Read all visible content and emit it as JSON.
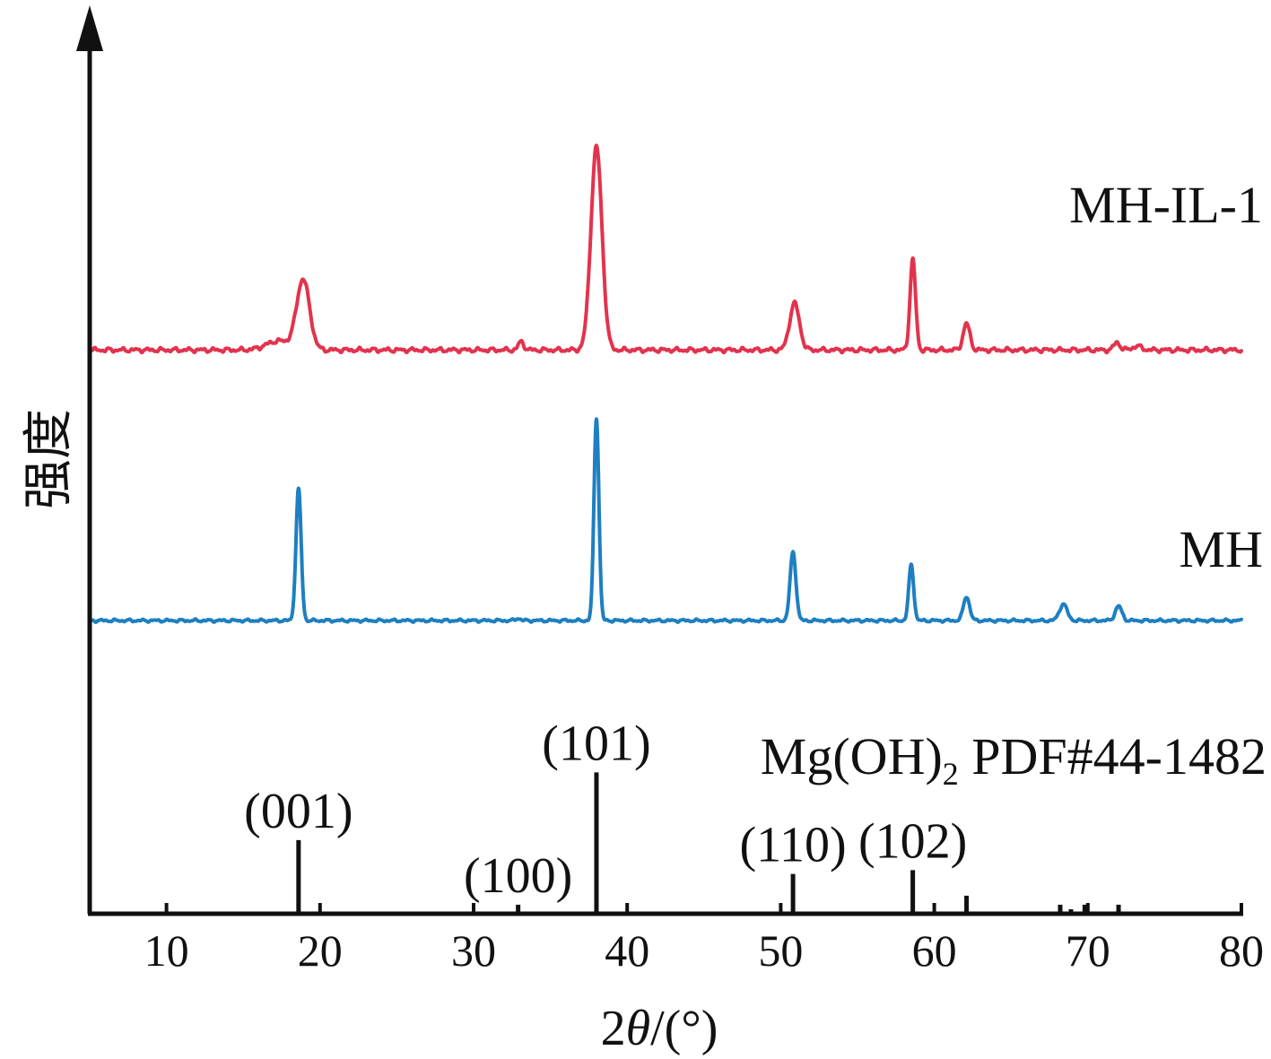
{
  "chart_data": {
    "type": "line",
    "title": "",
    "xlabel": "2θ/(°)",
    "xlabel_parts": {
      "prefix": "2",
      "theta": "θ",
      "suffix": "/(°)"
    },
    "ylabel": "强度",
    "xlim": [
      5,
      80
    ],
    "ylim": [
      0,
      115
    ],
    "ticks": [
      "10",
      "20",
      "30",
      "40",
      "50",
      "60",
      "70",
      "80"
    ],
    "tick_values": [
      10,
      20,
      30,
      40,
      50,
      60,
      70,
      80
    ],
    "legend": "inline-right",
    "series": [
      {
        "name": "MH-IL-1",
        "color": "#e2334d",
        "baseline": 75,
        "noise": 0.35,
        "peaks": [
          {
            "x": 17.3,
            "h": 1.2,
            "w": 0.8
          },
          {
            "x": 18.9,
            "h": 9.3,
            "w": 0.42
          },
          {
            "x": 33.1,
            "h": 1.1,
            "w": 0.18
          },
          {
            "x": 38.0,
            "h": 27.0,
            "w": 0.36
          },
          {
            "x": 50.9,
            "h": 6.2,
            "w": 0.32
          },
          {
            "x": 58.6,
            "h": 12.0,
            "w": 0.18
          },
          {
            "x": 62.1,
            "h": 3.5,
            "w": 0.22
          },
          {
            "x": 71.9,
            "h": 1.0,
            "w": 0.2
          },
          {
            "x": 73.2,
            "h": 0.5,
            "w": 0.3
          }
        ]
      },
      {
        "name": "MH",
        "color": "#1e7fc1",
        "baseline": 39,
        "noise": 0.22,
        "peaks": [
          {
            "x": 18.6,
            "h": 17.5,
            "w": 0.17
          },
          {
            "x": 32.9,
            "h": 0.3,
            "w": 0.15
          },
          {
            "x": 38.0,
            "h": 27.0,
            "w": 0.16
          },
          {
            "x": 50.8,
            "h": 9.1,
            "w": 0.19
          },
          {
            "x": 58.5,
            "h": 7.4,
            "w": 0.16
          },
          {
            "x": 62.1,
            "h": 3.2,
            "w": 0.2
          },
          {
            "x": 68.4,
            "h": 2.2,
            "w": 0.25
          },
          {
            "x": 72.0,
            "h": 1.9,
            "w": 0.22
          }
        ]
      }
    ],
    "reference": {
      "name": "Mg(OH)",
      "name_sub": "2",
      "name_suffix": " PDF#44-1482",
      "color": "#111111",
      "bars": [
        {
          "x": 18.6,
          "h": 9.8,
          "label": "(001)"
        },
        {
          "x": 32.9,
          "h": 1.2,
          "label": "(100)"
        },
        {
          "x": 38.0,
          "h": 18.8,
          "label": "(101)"
        },
        {
          "x": 50.8,
          "h": 5.3,
          "label": "(110)"
        },
        {
          "x": 58.6,
          "h": 5.8,
          "label": "(102)"
        },
        {
          "x": 62.1,
          "h": 2.4,
          "label": ""
        },
        {
          "x": 68.2,
          "h": 1.2,
          "label": ""
        },
        {
          "x": 68.9,
          "h": 0.6,
          "label": ""
        },
        {
          "x": 69.8,
          "h": 1.2,
          "label": ""
        },
        {
          "x": 72.0,
          "h": 1.2,
          "label": ""
        }
      ]
    }
  }
}
